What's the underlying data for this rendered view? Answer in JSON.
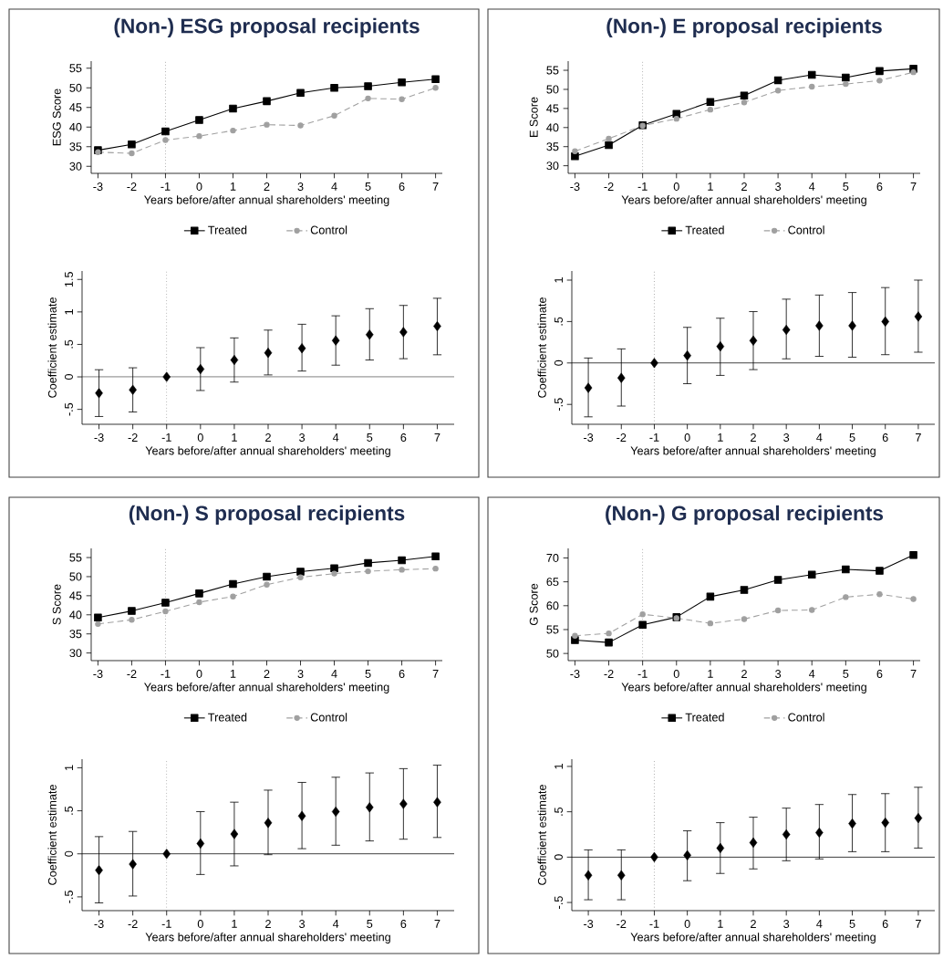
{
  "chart_data": [
    {
      "type": "line",
      "title": "(Non-) ESG proposal recipients",
      "xlabel": "Years before/after annual shareholders' meeting",
      "ylabel": "ESG Score",
      "x": [
        -3,
        -2,
        -1,
        0,
        1,
        2,
        3,
        4,
        5,
        6,
        7
      ],
      "xlim": [
        -3.2,
        7.2
      ],
      "xticks": [
        -3,
        -2,
        -1,
        0,
        1,
        2,
        3,
        4,
        5,
        6,
        7
      ],
      "ylim": [
        28.2,
        56.8
      ],
      "yticks": [
        30,
        35,
        40,
        45,
        50,
        55
      ],
      "legend": "bottom",
      "series": [
        {
          "name": "Treated",
          "color": "#000000",
          "marker": "square",
          "line_style": "solid",
          "values": [
            34.1,
            35.6,
            38.9,
            41.8,
            44.7,
            46.6,
            48.7,
            50.0,
            50.4,
            51.4,
            52.2
          ]
        },
        {
          "name": "Control",
          "color": "#a0a0a0",
          "marker": "circle",
          "line_style": "dashed",
          "values": [
            33.6,
            33.3,
            36.7,
            37.7,
            39.1,
            40.6,
            40.4,
            42.9,
            47.3,
            47.1,
            50.0
          ]
        }
      ],
      "ref_lines": [
        {
          "axis": "x",
          "value": -1,
          "color": "#808080",
          "line_style": "dotted"
        }
      ]
    },
    {
      "type": "line",
      "title": "(Non-) E proposal recipients",
      "xlabel": "Years before/after annual shareholders' meeting",
      "ylabel": "E Score",
      "x": [
        -3,
        -2,
        -1,
        0,
        1,
        2,
        3,
        4,
        5,
        6,
        7
      ],
      "xlim": [
        -3.2,
        7.2
      ],
      "xticks": [
        -3,
        -2,
        -1,
        0,
        1,
        2,
        3,
        4,
        5,
        6,
        7
      ],
      "ylim": [
        28.0,
        57.4
      ],
      "yticks": [
        30,
        35,
        40,
        45,
        50,
        55
      ],
      "legend": "bottom",
      "series": [
        {
          "name": "Treated",
          "color": "#000000",
          "marker": "square",
          "line_style": "solid",
          "values": [
            32.5,
            35.4,
            40.6,
            43.6,
            46.7,
            48.4,
            52.4,
            53.8,
            53.1,
            54.8,
            55.4
          ]
        },
        {
          "name": "Control",
          "color": "#a0a0a0",
          "marker": "circle",
          "line_style": "dashed",
          "values": [
            33.8,
            37.1,
            40.5,
            42.3,
            44.7,
            46.6,
            49.7,
            50.7,
            51.4,
            52.3,
            54.5
          ]
        }
      ],
      "ref_lines": [
        {
          "axis": "x",
          "value": -1,
          "color": "#808080",
          "line_style": "dotted"
        }
      ]
    },
    {
      "type": "scatter",
      "xlabel": "Years before/after annual shareholders' meeting",
      "ylabel": "Coefficient estimate",
      "x": [
        -3,
        -2,
        -1,
        0,
        1,
        2,
        3,
        4,
        5,
        6,
        7
      ],
      "xlim": [
        -3.5,
        7.5
      ],
      "xticks": [
        -3,
        -2,
        -1,
        0,
        1,
        2,
        3,
        4,
        5,
        6,
        7
      ],
      "ylim": [
        -0.73,
        1.63
      ],
      "yticks": [
        {
          "value": -0.5,
          "label": "-.5"
        },
        0,
        {
          "value": 0.5,
          "label": ".5"
        },
        1,
        {
          "value": 1.5,
          "label": "1.5"
        }
      ],
      "color": "#000000",
      "marker": "diamond",
      "values": [
        -0.25,
        -0.2,
        0,
        0.12,
        0.26,
        0.37,
        0.44,
        0.56,
        0.65,
        0.69,
        0.78
      ],
      "errors": [
        [
          -0.61,
          0.11
        ],
        [
          -0.54,
          0.14
        ],
        null,
        [
          -0.21,
          0.45
        ],
        [
          -0.08,
          0.6
        ],
        [
          0.03,
          0.72
        ],
        [
          0.09,
          0.81
        ],
        [
          0.18,
          0.94
        ],
        [
          0.26,
          1.05
        ],
        [
          0.28,
          1.1
        ],
        [
          0.34,
          1.21
        ]
      ],
      "ref_lines": [
        {
          "axis": "x",
          "value": -1,
          "color": "#808080",
          "line_style": "dotted"
        },
        {
          "axis": "y",
          "value": 0,
          "color": "#000000",
          "line_style": "solid"
        }
      ]
    },
    {
      "type": "scatter",
      "xlabel": "Years before/after annual shareholders' meeting",
      "ylabel": "Coefficient estimate",
      "x": [
        -3,
        -2,
        -1,
        0,
        1,
        2,
        3,
        4,
        5,
        6,
        7
      ],
      "xlim": [
        -3.5,
        7.5
      ],
      "xticks": [
        -3,
        -2,
        -1,
        0,
        1,
        2,
        3,
        4,
        5,
        6,
        7
      ],
      "ylim": [
        -0.74,
        1.11
      ],
      "yticks": [
        {
          "value": -0.5,
          "label": "-.5"
        },
        0,
        {
          "value": 0.5,
          "label": ".5"
        },
        1
      ],
      "color": "#000000",
      "marker": "diamond",
      "values": [
        -0.3,
        -0.18,
        0,
        0.09,
        0.2,
        0.27,
        0.4,
        0.45,
        0.45,
        0.5,
        0.56
      ],
      "errors": [
        [
          -0.65,
          0.06
        ],
        [
          -0.52,
          0.17
        ],
        null,
        [
          -0.25,
          0.43
        ],
        [
          -0.15,
          0.54
        ],
        [
          -0.08,
          0.62
        ],
        [
          0.05,
          0.77
        ],
        [
          0.08,
          0.82
        ],
        [
          0.07,
          0.85
        ],
        [
          0.1,
          0.91
        ],
        [
          0.13,
          1.0
        ]
      ],
      "ref_lines": [
        {
          "axis": "x",
          "value": -1,
          "color": "#808080",
          "line_style": "dotted"
        },
        {
          "axis": "y",
          "value": 0,
          "color": "#000000",
          "line_style": "solid"
        }
      ]
    },
    {
      "type": "line",
      "title": "(Non-) S proposal recipients",
      "xlabel": "Years before/after annual shareholders' meeting",
      "ylabel": "S Score",
      "x": [
        -3,
        -2,
        -1,
        0,
        1,
        2,
        3,
        4,
        5,
        6,
        7
      ],
      "xlim": [
        -3.2,
        7.2
      ],
      "xticks": [
        -3,
        -2,
        -1,
        0,
        1,
        2,
        3,
        4,
        5,
        6,
        7
      ],
      "ylim": [
        28.0,
        57.4
      ],
      "yticks": [
        30,
        35,
        40,
        45,
        50,
        55
      ],
      "legend": "bottom",
      "series": [
        {
          "name": "Treated",
          "color": "#000000",
          "marker": "square",
          "line_style": "solid",
          "values": [
            39.3,
            41.0,
            43.2,
            45.6,
            48.1,
            50.0,
            51.3,
            52.2,
            53.6,
            54.3,
            55.3
          ]
        },
        {
          "name": "Control",
          "color": "#a0a0a0",
          "marker": "circle",
          "line_style": "dashed",
          "values": [
            37.6,
            38.7,
            40.9,
            43.3,
            44.8,
            47.9,
            49.8,
            50.8,
            51.4,
            51.8,
            52.1
          ]
        }
      ],
      "ref_lines": [
        {
          "axis": "x",
          "value": -1,
          "color": "#808080",
          "line_style": "dotted"
        }
      ]
    },
    {
      "type": "line",
      "title": "(Non-) G proposal recipients",
      "xlabel": "Years before/after annual shareholders' meeting",
      "ylabel": "G Score",
      "x": [
        -3,
        -2,
        -1,
        0,
        1,
        2,
        3,
        4,
        5,
        6,
        7
      ],
      "xlim": [
        -3.2,
        7.2
      ],
      "xticks": [
        -3,
        -2,
        -1,
        0,
        1,
        2,
        3,
        4,
        5,
        6,
        7
      ],
      "ylim": [
        48.5,
        72.0
      ],
      "yticks": [
        50,
        55,
        60,
        65,
        70
      ],
      "legend": "bottom",
      "series": [
        {
          "name": "Treated",
          "color": "#000000",
          "marker": "square",
          "line_style": "solid",
          "values": [
            52.8,
            52.3,
            56.0,
            57.6,
            61.9,
            63.3,
            65.4,
            66.5,
            67.6,
            67.3,
            70.6
          ]
        },
        {
          "name": "Control",
          "color": "#a0a0a0",
          "marker": "circle",
          "line_style": "dashed",
          "values": [
            53.7,
            54.2,
            58.2,
            57.4,
            56.3,
            57.2,
            59.0,
            59.1,
            61.8,
            62.4,
            61.4
          ]
        }
      ],
      "ref_lines": [
        {
          "axis": "x",
          "value": -1,
          "color": "#808080",
          "line_style": "dotted"
        }
      ]
    },
    {
      "type": "scatter",
      "xlabel": "Years before/after annual shareholders' meeting",
      "ylabel": "Coefficient estimate",
      "x": [
        -3,
        -2,
        -1,
        0,
        1,
        2,
        3,
        4,
        5,
        6,
        7
      ],
      "xlim": [
        -3.5,
        7.5
      ],
      "xticks": [
        -3,
        -2,
        -1,
        0,
        1,
        2,
        3,
        4,
        5,
        6,
        7
      ],
      "ylim": [
        -0.66,
        1.1
      ],
      "yticks": [
        {
          "value": -0.5,
          "label": "-.5"
        },
        0,
        {
          "value": 0.5,
          "label": ".5"
        },
        1
      ],
      "color": "#000000",
      "marker": "diamond",
      "values": [
        -0.19,
        -0.12,
        0,
        0.12,
        0.23,
        0.36,
        0.44,
        0.49,
        0.54,
        0.58,
        0.6
      ],
      "errors": [
        [
          -0.57,
          0.2
        ],
        [
          -0.49,
          0.26
        ],
        null,
        [
          -0.24,
          0.49
        ],
        [
          -0.14,
          0.6
        ],
        [
          -0.01,
          0.74
        ],
        [
          0.06,
          0.83
        ],
        [
          0.1,
          0.89
        ],
        [
          0.15,
          0.94
        ],
        [
          0.17,
          0.99
        ],
        [
          0.19,
          1.03
        ]
      ],
      "ref_lines": [
        {
          "axis": "x",
          "value": -1,
          "color": "#808080",
          "line_style": "dotted"
        },
        {
          "axis": "y",
          "value": 0,
          "color": "#000000",
          "line_style": "solid"
        }
      ]
    },
    {
      "type": "scatter",
      "xlabel": "Years before/after annual shareholders' meeting",
      "ylabel": "Coefficient estimate",
      "x": [
        -3,
        -2,
        -1,
        0,
        1,
        2,
        3,
        4,
        5,
        6,
        7
      ],
      "xlim": [
        -3.5,
        7.5
      ],
      "xticks": [
        -3,
        -2,
        -1,
        0,
        1,
        2,
        3,
        4,
        5,
        6,
        7
      ],
      "ylim": [
        -0.59,
        1.08
      ],
      "yticks": [
        {
          "value": -0.5,
          "label": "-.5"
        },
        0,
        {
          "value": 0.5,
          "label": ".5"
        },
        1
      ],
      "color": "#000000",
      "marker": "diamond",
      "values": [
        -0.2,
        -0.2,
        0,
        0.02,
        0.1,
        0.16,
        0.25,
        0.27,
        0.37,
        0.38,
        0.43
      ],
      "errors": [
        [
          -0.47,
          0.08
        ],
        [
          -0.47,
          0.08
        ],
        null,
        [
          -0.26,
          0.29
        ],
        [
          -0.18,
          0.38
        ],
        [
          -0.13,
          0.44
        ],
        [
          -0.04,
          0.54
        ],
        [
          -0.02,
          0.58
        ],
        [
          0.06,
          0.69
        ],
        [
          0.06,
          0.7
        ],
        [
          0.1,
          0.77
        ]
      ],
      "ref_lines": [
        {
          "axis": "x",
          "value": -1,
          "color": "#808080",
          "line_style": "dotted"
        },
        {
          "axis": "y",
          "value": 0,
          "color": "#000000",
          "line_style": "solid"
        }
      ]
    }
  ]
}
